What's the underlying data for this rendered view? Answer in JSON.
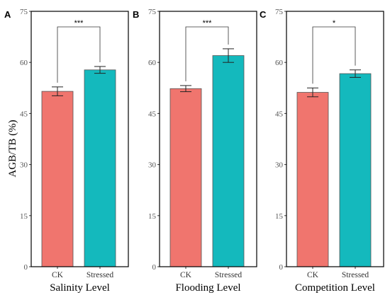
{
  "figure": {
    "ylabel": "AGB/TB (%)"
  },
  "colors": {
    "ck": "#F0756E",
    "stressed": "#14B9BD"
  },
  "chart_data": [
    {
      "type": "bar",
      "panel": "A",
      "categories": [
        "CK",
        "Stressed"
      ],
      "values": [
        51.5,
        57.8
      ],
      "errors": [
        1.3,
        1.0
      ],
      "xlabel": "Salinity Level",
      "ylabel": "AGB/TB (%)",
      "ylim": [
        0,
        75
      ],
      "yticks": [
        "0",
        "15",
        "30",
        "45",
        "60",
        "75"
      ],
      "significance": "***",
      "grid": false
    },
    {
      "type": "bar",
      "panel": "B",
      "categories": [
        "CK",
        "Stressed"
      ],
      "values": [
        52.3,
        62.0
      ],
      "errors": [
        0.9,
        2.0
      ],
      "xlabel": "Flooding Level",
      "ylabel": "",
      "ylim": [
        0,
        75
      ],
      "yticks": [
        "0",
        "15",
        "30",
        "45",
        "60",
        "75"
      ],
      "significance": "***",
      "grid": false
    },
    {
      "type": "bar",
      "panel": "C",
      "categories": [
        "CK",
        "Stressed"
      ],
      "values": [
        51.2,
        56.7
      ],
      "errors": [
        1.3,
        1.1
      ],
      "xlabel": "Competition Level",
      "ylabel": "",
      "ylim": [
        0,
        75
      ],
      "yticks": [
        "0",
        "15",
        "30",
        "45",
        "60",
        "75"
      ],
      "significance": "*",
      "grid": false
    }
  ]
}
